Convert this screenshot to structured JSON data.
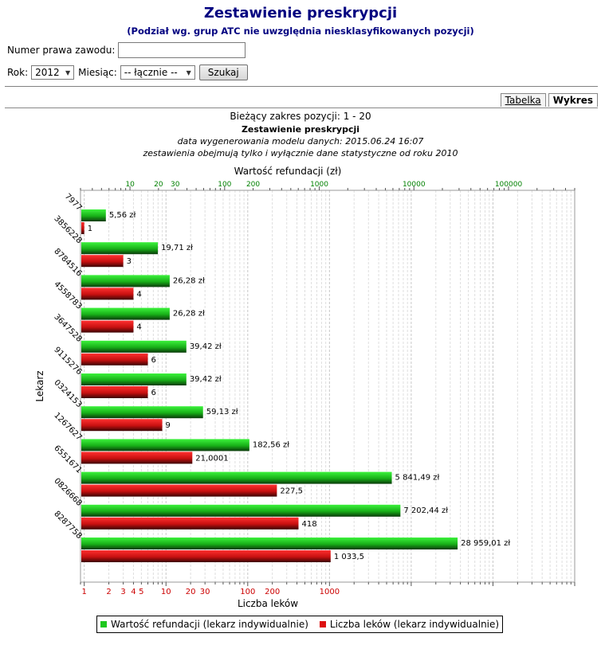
{
  "header": {
    "title": "Zestawienie preskrypcji",
    "subtitle": "(Podział wg. grup ATC nie uwzględnia niesklasyfikowanych pozycji)"
  },
  "form": {
    "license_label": "Numer prawa zawodu:",
    "license_value": "",
    "year_label": "Rok:",
    "year_value": "2012",
    "month_label": "Miesiąc:",
    "month_value": "-- łącznie --",
    "search_button": "Szukaj"
  },
  "tabs": [
    {
      "label": "Tabelka",
      "active": false
    },
    {
      "label": "Wykres",
      "active": true
    }
  ],
  "info": {
    "range": "Bieżący zakres pozycji: 1 - 20",
    "heading": "Zestawienie preskrypcji",
    "generated": "data wygenerowania modelu danych: 2015.06.24 16:07",
    "note": "zestawienia obejmują tylko i wyłącznie dane statystyczne od roku 2010"
  },
  "chart_data": {
    "type": "bar",
    "orientation": "horizontal",
    "scale": "log",
    "grid": true,
    "ylabel": "Lekarz",
    "top_axis": {
      "label": "Wartość refundacji (zł)",
      "range": [
        3,
        500000
      ],
      "ticks": [
        10,
        20,
        30,
        100,
        200,
        1000,
        10000,
        100000
      ],
      "tick_labels": [
        "10",
        "20",
        "30",
        "100",
        "200",
        "1000",
        "10000",
        "100000"
      ],
      "color": "#008000"
    },
    "bottom_axis": {
      "label": "Liczba leków",
      "range": [
        0.9,
        1000000
      ],
      "ticks": [
        1,
        2,
        3,
        4,
        5,
        10,
        20,
        30,
        100,
        200,
        1000
      ],
      "tick_labels": [
        "1",
        "2",
        "3",
        "4",
        "5",
        "10",
        "20",
        "30",
        "100",
        "200",
        "1000"
      ],
      "color": "#cc0000"
    },
    "categories": [
      "7977",
      "3856228",
      "8784516",
      "4558783",
      "3647528",
      "9115276",
      "0324153",
      "1267627",
      "6551671",
      "0826668",
      "8287758"
    ],
    "series": [
      {
        "name": "Wartość refundacji (lekarz indywidualnie)",
        "color": "#1ec81e",
        "axis": "top",
        "values": [
          5.56,
          19.71,
          26.28,
          26.28,
          39.42,
          39.42,
          59.13,
          182.56,
          5841.49,
          7202.44,
          28959.01
        ],
        "labels": [
          "5,56 zł",
          "19,71 zł",
          "26,28 zł",
          "26,28 zł",
          "39,42 zł",
          "39,42 zł",
          "59,13 zł",
          "182,56 zł",
          "5 841,49 zł",
          "7 202,44 zł",
          "28 959,01 zł"
        ]
      },
      {
        "name": "Liczba leków (lekarz indywidualnie)",
        "color": "#dd1111",
        "axis": "bottom",
        "values": [
          1,
          3,
          4,
          4,
          6,
          6,
          9,
          21.0001,
          227.5,
          418,
          1033.5
        ],
        "labels": [
          "1",
          "3",
          "4",
          "4",
          "6",
          "6",
          "9",
          "21,0001",
          "227,5",
          "418",
          "1 033,5"
        ]
      }
    ],
    "legend_position": "bottom"
  }
}
